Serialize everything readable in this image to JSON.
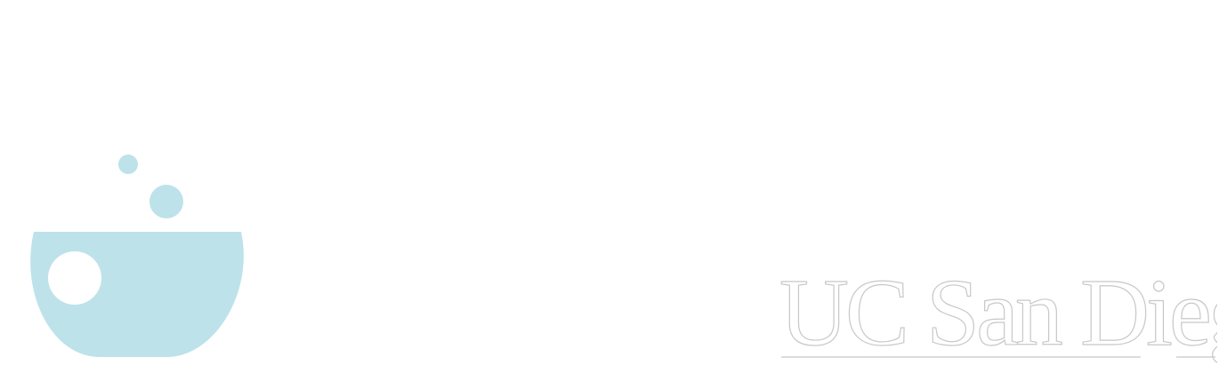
{
  "logo": {
    "icon": "lab-bowl-icon",
    "color": "#bde2ea"
  },
  "wordmark": {
    "text": "UC San Diego",
    "stroke_color": "#c8c8c8",
    "fill_color": "#ffffff"
  }
}
